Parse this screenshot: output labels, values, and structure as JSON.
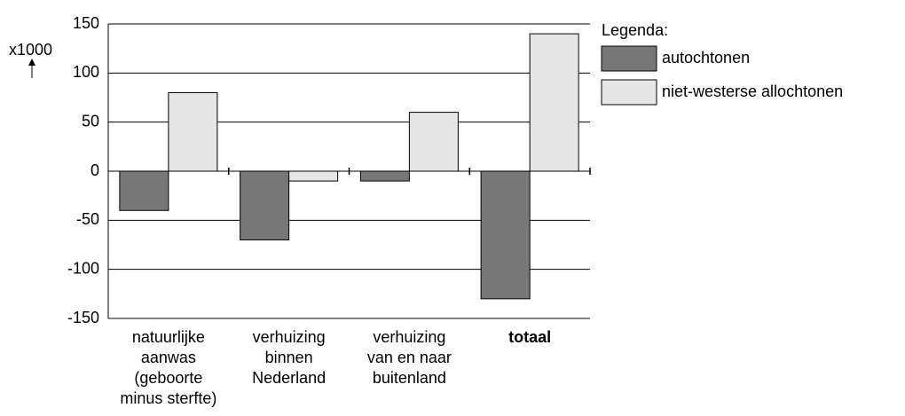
{
  "chart_data": {
    "type": "bar",
    "y_label": "x1000",
    "legend_title": "Legenda:",
    "categories": [
      [
        "natuurlijke",
        "aanwas",
        "(geboorte",
        "minus sterfte)"
      ],
      [
        "verhuizing",
        "binnen",
        "Nederland"
      ],
      [
        "verhuizing",
        "van en naar",
        "buitenland"
      ],
      [
        "totaal"
      ]
    ],
    "series": [
      {
        "name": "autochtonen",
        "color": "#777777",
        "values": [
          -40,
          -70,
          -10,
          -130
        ]
      },
      {
        "name": "niet-westerse allochtonen",
        "color": "#e6e6e6",
        "values": [
          80,
          -10,
          60,
          140
        ]
      }
    ],
    "ylim": [
      -150,
      150
    ],
    "yticks": [
      -150,
      -100,
      -50,
      0,
      50,
      100,
      150
    ],
    "grid": true
  }
}
